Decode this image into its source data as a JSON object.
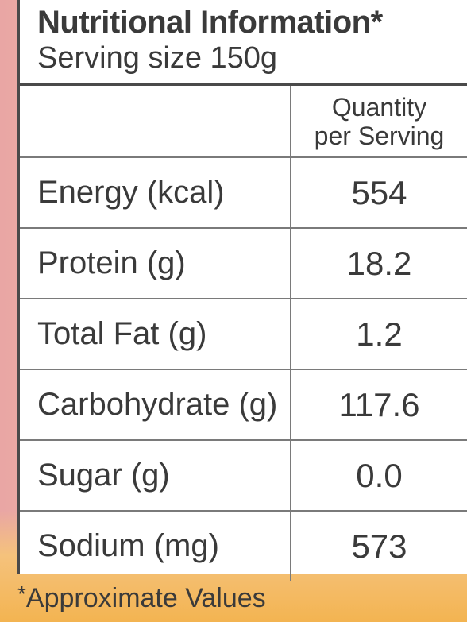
{
  "header": {
    "title": "Nutritional Information*",
    "serving_size": "Serving size 150g"
  },
  "table": {
    "column_header_line1": "Quantity",
    "column_header_line2": "per Serving",
    "rows": [
      {
        "nutrient": "Energy (kcal)",
        "value": "554"
      },
      {
        "nutrient": "Protein (g)",
        "value": "18.2"
      },
      {
        "nutrient": "Total Fat (g)",
        "value": "1.2"
      },
      {
        "nutrient": "Carbohydrate (g)",
        "value": "117.6"
      },
      {
        "nutrient": "Sugar (g)",
        "value": "0.0"
      },
      {
        "nutrient": "Sodium (mg)",
        "value": "573"
      }
    ]
  },
  "footnote": {
    "star": "*",
    "text": "Approximate Values"
  },
  "colors": {
    "text": "#3a3a3a",
    "border": "#4a4a4a",
    "panel": "#ffffff",
    "background_left": "#e9a6a4",
    "background_bottom": "#f3b451"
  }
}
